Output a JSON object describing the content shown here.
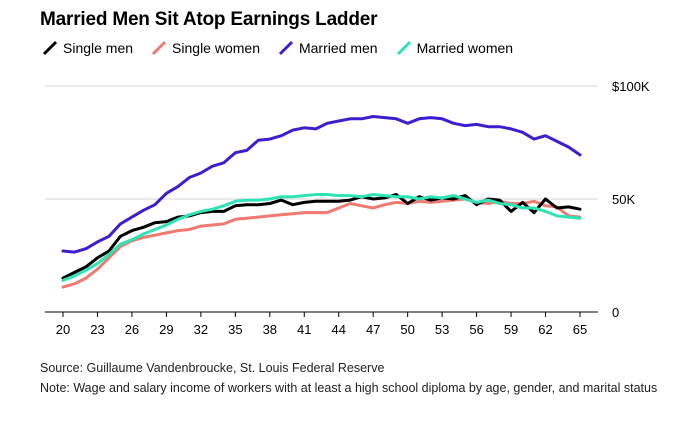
{
  "title": "Married Men Sit Atop Earnings Ladder",
  "source": "Source: Guillaume Vandenbroucke, St. Louis Federal Reserve",
  "note": "Note: Wage and salary income of workers with at least a high school diploma by age, gender, and marital status",
  "colors": {
    "single_men": "#000000",
    "single_women": "#f07a70",
    "married_men": "#3a1fd0",
    "married_women": "#2ee3b4"
  },
  "chart_data": {
    "type": "line",
    "x": [
      20,
      21,
      22,
      23,
      24,
      25,
      26,
      27,
      28,
      29,
      30,
      31,
      32,
      33,
      34,
      35,
      36,
      37,
      38,
      39,
      40,
      41,
      42,
      43,
      44,
      45,
      46,
      47,
      48,
      49,
      50,
      51,
      52,
      53,
      54,
      55,
      56,
      57,
      58,
      59,
      60,
      61,
      62,
      63,
      64,
      65
    ],
    "xticks": [
      20,
      23,
      26,
      29,
      32,
      35,
      38,
      41,
      44,
      47,
      50,
      53,
      56,
      59,
      62,
      65
    ],
    "xtick_labels": [
      "20",
      "23",
      "26",
      "29",
      "32",
      "35",
      "38",
      "41",
      "44",
      "47",
      "50",
      "53",
      "56",
      "59",
      "62",
      "65"
    ],
    "ylim": [
      0,
      100000
    ],
    "yticks": [
      0,
      50000,
      100000
    ],
    "ytick_labels": [
      "0",
      "50K",
      "$100K"
    ],
    "legend_position": "top",
    "grid": "horizontal",
    "series": [
      {
        "key": "single_men",
        "name": "Single men",
        "values": [
          15000,
          17500,
          20000,
          24000,
          27000,
          33500,
          36000,
          37500,
          39500,
          40000,
          42000,
          42500,
          44000,
          44500,
          44500,
          47000,
          47500,
          47500,
          48000,
          49500,
          47500,
          48500,
          49000,
          49000,
          49000,
          49500,
          51000,
          50000,
          50500,
          52000,
          48000,
          51000,
          49500,
          50500,
          50000,
          51500,
          47500,
          50000,
          49500,
          44500,
          48500,
          44000,
          50000,
          46000,
          46500,
          45500
        ]
      },
      {
        "key": "single_women",
        "name": "Single women",
        "values": [
          11000,
          12500,
          15000,
          19000,
          24000,
          29000,
          31500,
          33000,
          34000,
          35000,
          36000,
          36500,
          38000,
          38500,
          39000,
          41000,
          41500,
          42000,
          42500,
          43000,
          43500,
          44000,
          44000,
          44000,
          46000,
          48000,
          47000,
          46000,
          47500,
          48500,
          48000,
          49000,
          48500,
          49000,
          49500,
          50000,
          48500,
          48000,
          49000,
          48000,
          48000,
          49000,
          47000,
          46500,
          42500,
          42000
        ]
      },
      {
        "key": "married_men",
        "name": "Married men",
        "values": [
          27000,
          26500,
          28000,
          31000,
          33500,
          39000,
          42000,
          45000,
          47500,
          52500,
          55500,
          59500,
          61500,
          64500,
          66000,
          70500,
          71500,
          76000,
          76500,
          78000,
          80500,
          81500,
          81000,
          83500,
          84500,
          85500,
          85500,
          86500,
          86000,
          85500,
          83500,
          85500,
          86000,
          85500,
          83500,
          82500,
          83000,
          82000,
          82000,
          81000,
          79500,
          76500,
          78000,
          75500,
          73000,
          69500
        ]
      },
      {
        "key": "married_women",
        "name": "Married women",
        "values": [
          14000,
          16000,
          18500,
          21500,
          25500,
          30000,
          32000,
          34500,
          36500,
          38500,
          41000,
          43000,
          44500,
          45500,
          47000,
          49000,
          49500,
          49500,
          50000,
          51000,
          51000,
          51500,
          52000,
          52000,
          51500,
          51500,
          51000,
          52000,
          51500,
          51000,
          51000,
          50000,
          51000,
          50500,
          51500,
          50000,
          48500,
          49500,
          48000,
          47500,
          46000,
          46000,
          44500,
          42500,
          42000,
          41500
        ]
      }
    ]
  }
}
